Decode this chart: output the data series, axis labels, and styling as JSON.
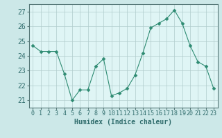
{
  "x": [
    0,
    1,
    2,
    3,
    4,
    5,
    6,
    7,
    8,
    9,
    10,
    11,
    12,
    13,
    14,
    15,
    16,
    17,
    18,
    19,
    20,
    21,
    22,
    23
  ],
  "y": [
    24.7,
    24.3,
    24.3,
    24.3,
    22.8,
    21.0,
    21.7,
    21.7,
    23.3,
    23.8,
    21.3,
    21.5,
    21.8,
    22.7,
    24.2,
    25.9,
    26.2,
    26.5,
    27.1,
    26.2,
    24.7,
    23.6,
    23.3,
    21.8
  ],
  "line_color": "#2e8b72",
  "marker": "D",
  "marker_size": 2.5,
  "bg_color": "#cce8e8",
  "plot_bg_color": "#dff5f5",
  "grid_color": "#b0cccc",
  "xlabel": "Humidex (Indice chaleur)",
  "ylim": [
    20.5,
    27.5
  ],
  "xlim": [
    -0.5,
    23.5
  ],
  "yticks": [
    21,
    22,
    23,
    24,
    25,
    26,
    27
  ],
  "xticks": [
    0,
    1,
    2,
    3,
    4,
    5,
    6,
    7,
    8,
    9,
    10,
    11,
    12,
    13,
    14,
    15,
    16,
    17,
    18,
    19,
    20,
    21,
    22,
    23
  ],
  "xlabel_fontsize": 7,
  "ytick_fontsize": 7,
  "xtick_fontsize": 6
}
